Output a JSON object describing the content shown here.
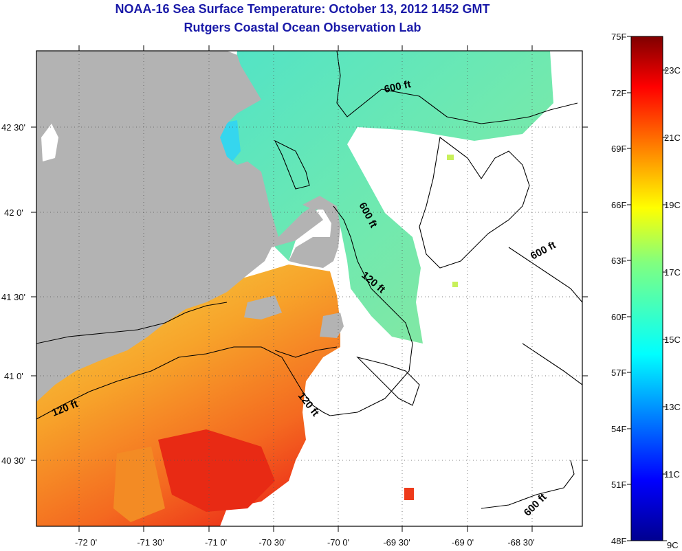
{
  "title_line1": "NOAA-16 Sea Surface Temperature:  October 13, 2012 1452 GMT",
  "title_line2": "Rutgers Coastal Ocean Observation Lab",
  "map": {
    "lon_ticks": [
      "-72 0'",
      "-71 30'",
      "-71 0'",
      "-70 30'",
      "-70 0'",
      "-69 30'",
      "-69 0'",
      "-68 30'"
    ],
    "lat_ticks": [
      "42 30'",
      "42 0'",
      "41 30'",
      "41 0'",
      "40 30'"
    ],
    "contour_labels": [
      "600 ft",
      "600 ft",
      "600 ft",
      "600 ft",
      "120 ft",
      "120 ft",
      "120 ft"
    ],
    "land_color": "#b3b3b3",
    "cloud_color": "#ffffff"
  },
  "colorbar": {
    "fahrenheit_labels": [
      "75F",
      "72F",
      "69F",
      "66F",
      "63F",
      "60F",
      "57F",
      "54F",
      "51F",
      "48F"
    ],
    "celsius_labels": [
      "23C",
      "21C",
      "19C",
      "17C",
      "15C",
      "13C",
      "11C",
      "9C"
    ],
    "colors": [
      "#7f0000",
      "#ff0000",
      "#ff8000",
      "#ffff00",
      "#80ff80",
      "#00ffff",
      "#0080ff",
      "#0000ff",
      "#00008f"
    ]
  }
}
